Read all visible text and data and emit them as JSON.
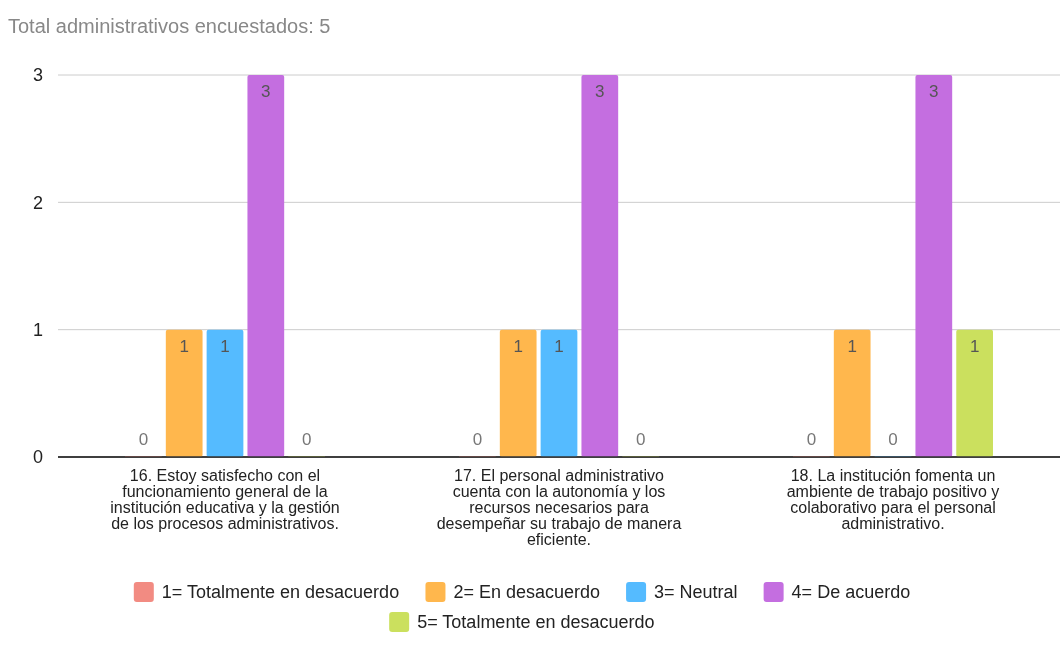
{
  "chart_data": {
    "type": "bar",
    "title": "Total administrativos encuestados: 5",
    "categories": [
      "16. Estoy satisfecho con el funcionamiento general de la institución educativa y la gestión de los procesos administrativos.",
      "17. El personal administrativo cuenta con la autonomía y los recursos necesarios para desempeñar su trabajo de manera eficiente.",
      "18. La institución fomenta un ambiente de trabajo positivo y colaborativo para el personal administrativo."
    ],
    "series": [
      {
        "name": "1= Totalmente en desacuerdo",
        "color": "#f28b82",
        "values": [
          0,
          0,
          0
        ]
      },
      {
        "name": "2= En desacuerdo",
        "color": "#ffb74d",
        "values": [
          1,
          1,
          1
        ]
      },
      {
        "name": "3= Neutral",
        "color": "#55bbff",
        "values": [
          1,
          1,
          0
        ]
      },
      {
        "name": "4= De acuerdo",
        "color": "#c46ee0",
        "values": [
          3,
          3,
          3
        ]
      },
      {
        "name": "5= Totalmente en desacuerdo",
        "color": "#cbe05e",
        "values": [
          0,
          0,
          1
        ]
      }
    ],
    "ylim": [
      0,
      3
    ],
    "yticks": [
      0,
      1,
      2,
      3
    ],
    "grid": "y",
    "legend": "bottom",
    "data_labels": true
  }
}
